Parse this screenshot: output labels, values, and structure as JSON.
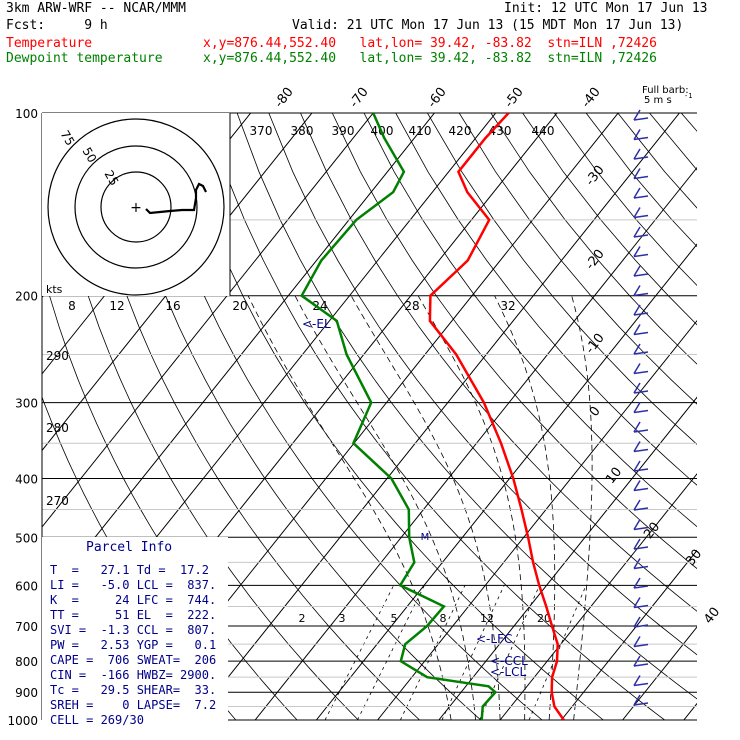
{
  "header": {
    "model": "3km ARW-WRF -- NCAR/MMM",
    "init": "Init: 12 UTC Mon 17 Jun 13",
    "fcst": "Fcst:     9 h",
    "valid": "Valid: 21 UTC Mon 17 Jun 13 (15 MDT Mon 17 Jun 13)",
    "temp_label": "Temperature",
    "dew_label": "Dewpoint temperature",
    "temp_loc": "x,y=876.44,552.40   lat,lon= 39.42, -83.82  stn=ILN ,72426",
    "dew_loc": "x,y=876.44,552.40   lat,lon= 39.42, -83.82  stn=ILN ,72426",
    "temp_color": "#ff0000",
    "dew_color": "#008000"
  },
  "chart_data": {
    "type": "line",
    "pressure_levels": [
      "100",
      "200",
      "300",
      "400",
      "500",
      "600",
      "700",
      "800",
      "900",
      "1000"
    ],
    "temperature": [
      {
        "p": 1000,
        "t": 30.4
      },
      {
        "p": 950,
        "t": 27.1
      },
      {
        "p": 900,
        "t": 24.8
      },
      {
        "p": 850,
        "t": 22.9
      },
      {
        "p": 800,
        "t": 21.6
      },
      {
        "p": 750,
        "t": 19.5
      },
      {
        "p": 700,
        "t": 16.2
      },
      {
        "p": 650,
        "t": 12.7
      },
      {
        "p": 600,
        "t": 8.8
      },
      {
        "p": 550,
        "t": 4.8
      },
      {
        "p": 500,
        "t": 0.7
      },
      {
        "p": 450,
        "t": -4.0
      },
      {
        "p": 400,
        "t": -9.4
      },
      {
        "p": 350,
        "t": -16.0
      },
      {
        "p": 300,
        "t": -24.1
      },
      {
        "p": 250,
        "t": -34.9
      },
      {
        "p": 220,
        "t": -43.6
      },
      {
        "p": 200,
        "t": -46.8
      },
      {
        "p": 175,
        "t": -45.3
      },
      {
        "p": 150,
        "t": -47.1
      },
      {
        "p": 135,
        "t": -54.3
      },
      {
        "p": 125,
        "t": -58.4
      },
      {
        "p": 110,
        "t": -58.4
      },
      {
        "p": 100,
        "t": -57.9
      }
    ],
    "dewpoint": [
      {
        "p": 1000,
        "t": 17.0
      },
      {
        "p": 950,
        "t": 15.4
      },
      {
        "p": 900,
        "t": 15.6
      },
      {
        "p": 880,
        "t": 13.7
      },
      {
        "p": 850,
        "t": 2.5
      },
      {
        "p": 800,
        "t": -3.9
      },
      {
        "p": 750,
        "t": -5.4
      },
      {
        "p": 700,
        "t": -4.2
      },
      {
        "p": 650,
        "t": -4.0
      },
      {
        "p": 600,
        "t": -13.9
      },
      {
        "p": 550,
        "t": -14.6
      },
      {
        "p": 500,
        "t": -18.7
      },
      {
        "p": 450,
        "t": -22.4
      },
      {
        "p": 400,
        "t": -29.3
      },
      {
        "p": 350,
        "t": -40.1
      },
      {
        "p": 300,
        "t": -42.5
      },
      {
        "p": 250,
        "t": -52.8
      },
      {
        "p": 220,
        "t": -58.8
      },
      {
        "p": 200,
        "t": -67.8
      },
      {
        "p": 175,
        "t": -69.2
      },
      {
        "p": 150,
        "t": -68.8
      },
      {
        "p": 135,
        "t": -66.4
      },
      {
        "p": 125,
        "t": -67.3
      },
      {
        "p": 110,
        "t": -74.9
      },
      {
        "p": 100,
        "t": -80.0
      }
    ],
    "isotherm_labels": [
      "-80",
      "-70",
      "-60",
      "-50",
      "-40",
      "-30",
      "-20",
      "-10",
      "0",
      "10",
      "20",
      "30",
      "40"
    ],
    "theta_labels": [
      "370",
      "380",
      "390",
      "400",
      "410",
      "420",
      "430",
      "440"
    ],
    "mixing_ratio_labels": [
      "2",
      "3",
      "5",
      "8",
      "12",
      "20"
    ],
    "hodograph": {
      "rings": [
        "75",
        "50",
        "25"
      ],
      "speed_label": "kts",
      "speed_ticks": [
        "8",
        "12",
        "16",
        "20",
        "24",
        "28",
        "32"
      ],
      "theta_e_labels": [
        "290",
        "280",
        "270"
      ]
    },
    "annotations": {
      "el": "<-EL",
      "lfc": "<-LFC",
      "ccl": "<-CCL",
      "lcl": "<-LCL"
    },
    "barb_title": "Full barb:",
    "barb_unit": "5 m s"
  },
  "parcel": {
    "title": "Parcel Info",
    "rows": [
      "T  =   27.1 Td =  17.2",
      "LI =   -5.0 LCL =  837.",
      "K  =     24 LFC =  744.",
      "TT =     51 EL  =  222.",
      "SVI =  -1.3 CCL =  807.",
      "PW =   2.53 YGP =   0.1",
      "CAPE =  706 SWEAT=  206",
      "CIN =  -166 HWBZ= 2900.",
      "Tc =   29.5 SHEAR=  33.",
      "SREH =    0 LAPSE=  7.2",
      "CELL = 269/30"
    ]
  }
}
